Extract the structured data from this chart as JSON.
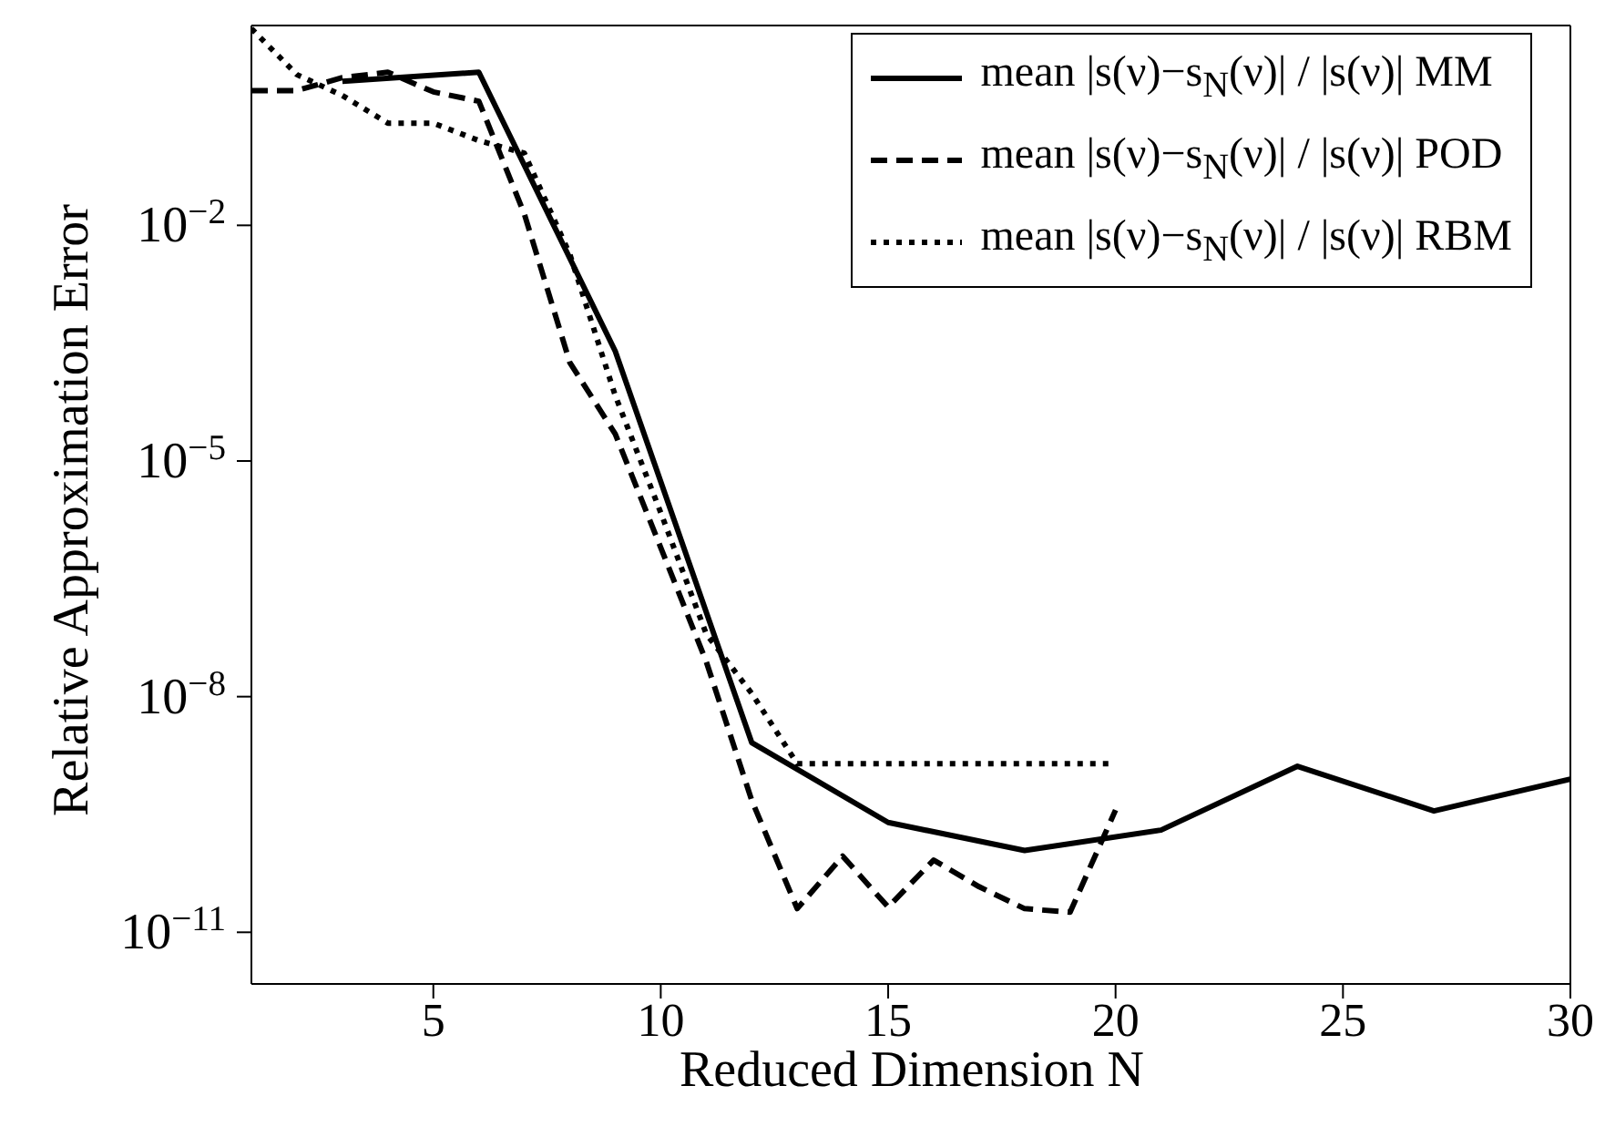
{
  "chart_data": {
    "type": "line",
    "xlabel": "Reduced Dimension N",
    "ylabel": "Relative Approximation Error",
    "log": "y",
    "legend": "top right",
    "marker": "none",
    "xlim": [
      1,
      30
    ],
    "xticks": [
      5,
      10,
      15,
      20,
      25,
      30
    ],
    "ylim": [
      2.2e-12,
      3.5
    ],
    "yticks": [
      {
        "value": 0.01,
        "label": "10$^{−2}$"
      },
      {
        "value": 1e-05,
        "label": "10$^{−5}$"
      },
      {
        "value": 1e-08,
        "label": "10$^{−8}$"
      },
      {
        "value": 1e-11,
        "label": "10$^{−11}$"
      }
    ],
    "series": [
      {
        "name": "mean |s(ν)−s$_{N}$(ν)| / |s(ν)| MM",
        "color": "#000000",
        "line_style": "solid",
        "x": [
          3,
          6,
          9,
          12,
          15,
          18,
          21,
          24,
          27,
          30
        ],
        "values": [
          0.68,
          0.89,
          0.00025,
          2.6e-09,
          2.5e-10,
          1.1e-10,
          2e-10,
          1.3e-09,
          3.5e-10,
          8.9e-10
        ]
      },
      {
        "name": "mean |s(ν)−s$_{N}$(ν)| / |s(ν)| POD",
        "color": "#000000",
        "line_style": "dashed",
        "x": [
          1,
          2,
          3,
          4,
          5,
          6,
          7,
          8,
          9,
          10,
          11,
          12,
          13,
          14,
          15,
          16,
          17,
          18,
          19,
          20
        ],
        "values": [
          0.52,
          0.52,
          0.76,
          0.89,
          0.5,
          0.38,
          0.014,
          0.00018,
          2.2e-05,
          7.9e-07,
          2.8e-08,
          4.8e-10,
          2e-11,
          9.3e-11,
          2.1e-11,
          8.3e-11,
          3.8e-11,
          2e-11,
          1.8e-11,
          3.6e-10
        ]
      },
      {
        "name": "mean |s(ν)−s$_{N}$(ν)| / |s(ν)| RBM",
        "color": "#000000",
        "line_style": "dotted",
        "x": [
          1,
          2,
          3,
          4,
          5,
          6,
          7,
          8,
          9,
          10,
          11,
          12,
          13,
          14,
          15,
          16,
          17,
          18,
          19,
          20
        ],
        "values": [
          3.2,
          0.83,
          0.45,
          0.2,
          0.2,
          0.12,
          0.083,
          0.0043,
          6.8e-05,
          2.2e-06,
          6.3e-08,
          1.1e-08,
          1.4e-09,
          1.4e-09,
          1.4e-09,
          1.4e-09,
          1.4e-09,
          1.4e-09,
          1.4e-09,
          1.4e-09
        ]
      }
    ]
  }
}
